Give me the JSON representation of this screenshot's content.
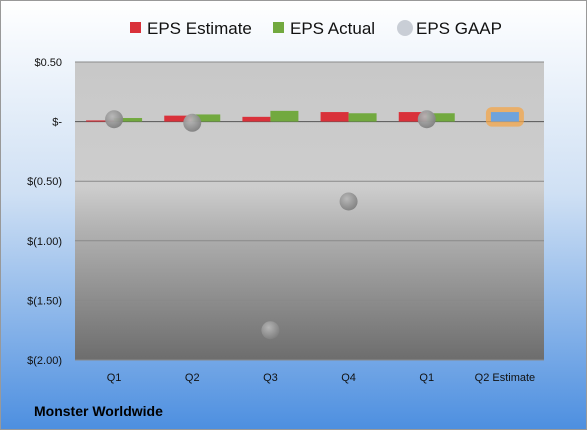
{
  "company_name": "Monster Worldwide",
  "colors": {
    "estimate": "#d9313a",
    "actual": "#72a93f",
    "gaap": "#8a8a8a",
    "projected_estimate": "#6fa3dc",
    "projected_glow": "#f3a64a"
  },
  "chart_data": {
    "type": "bar",
    "title": "",
    "xlabel": "",
    "ylabel": "",
    "categories": [
      "Q1",
      "Q2",
      "Q3",
      "Q4",
      "Q1",
      "Q2 Estimate"
    ],
    "y_ticks": [
      0.5,
      0,
      -0.5,
      -1.0,
      -1.5,
      -2.0
    ],
    "y_tick_labels": [
      "$0.50",
      "$-",
      "$(0.50)",
      "$(1.00)",
      "$(1.50)",
      "$(2.00)"
    ],
    "ylim": [
      -2.0,
      0.5
    ],
    "grid": true,
    "legend": "top",
    "series": [
      {
        "name": "EPS Estimate",
        "type": "bar",
        "values": [
          0.01,
          0.05,
          0.04,
          0.08,
          0.08,
          null
        ]
      },
      {
        "name": "EPS Actual",
        "type": "bar",
        "values": [
          0.03,
          0.06,
          0.09,
          0.07,
          0.07,
          null
        ]
      },
      {
        "name": "EPS GAAP",
        "type": "scatter",
        "values": [
          0.02,
          -0.01,
          -1.75,
          -0.67,
          0.02,
          null
        ]
      },
      {
        "name": "Q2 Estimate",
        "type": "bar",
        "values": [
          null,
          null,
          null,
          null,
          null,
          0.08
        ]
      }
    ]
  }
}
